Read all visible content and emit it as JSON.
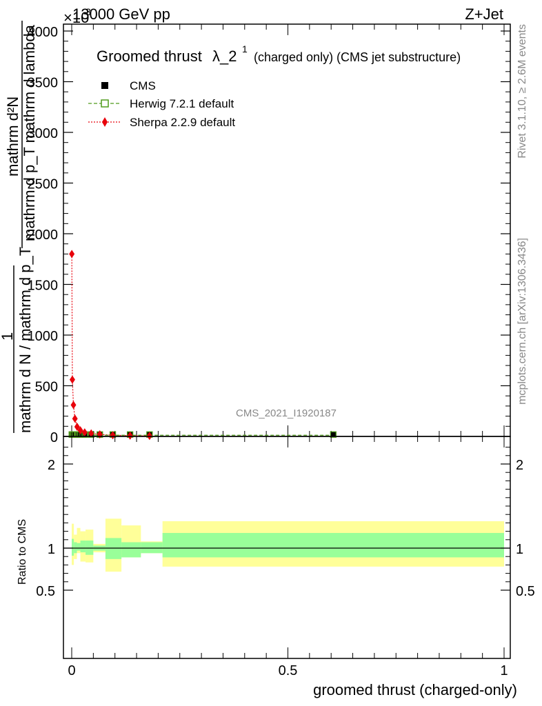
{
  "header": {
    "left": "13000 GeV pp",
    "right": "Z+Jet",
    "exponent": "×10",
    "exponent_power": "3"
  },
  "side": {
    "rivet": "Rivet 3.1.10, ≥ 2.6M events",
    "mcplots": "mcplots.cern.ch [arXiv:1306.3436]"
  },
  "watermark": "CMS_2021_I1920187",
  "chart_data": [
    {
      "type": "scatter",
      "title": "Groomed thrust",
      "title_symbol": "λ_2",
      "title_sup": "1",
      "subtitle": "(charged only) (CMS jet substructure)",
      "ylabel_numerator": "mathrm d²N",
      "ylabel_den": "mathrm d p_T mathrm d lambda",
      "ylabel_one": "1",
      "ylabel_bottom": "mathrm d N / mathrm d p_T",
      "xlim": [
        0,
        1
      ],
      "ylim": [
        0,
        4000
      ],
      "y_ticks": [
        0,
        500,
        1000,
        1500,
        2000,
        2500,
        3000,
        3500,
        4000
      ],
      "y_tick_labels": [
        "0",
        "500",
        "1000",
        "1500",
        "2000",
        "2500",
        "3000",
        "3500",
        "4000"
      ],
      "legend": [
        {
          "name": "CMS",
          "color": "#000000",
          "marker": "square-filled"
        },
        {
          "name": "Herwig 7.2.1 default",
          "color": "#4f9a1a",
          "marker": "square-open",
          "dash": "dashed"
        },
        {
          "name": "Sherpa 2.2.9 default",
          "color": "#e8000b",
          "marker": "diamond",
          "dash": "dotted"
        }
      ],
      "series": [
        {
          "name": "CMS",
          "x": [
            0.00025,
            0.0015,
            0.004,
            0.0075,
            0.0125,
            0.02,
            0.03,
            0.045,
            0.065,
            0.095,
            0.135,
            0.18,
            0.605
          ],
          "y": [
            5,
            5,
            5,
            5,
            5,
            5,
            5,
            5,
            5,
            5,
            5,
            5,
            5
          ]
        },
        {
          "name": "Herwig 7.2.1 default",
          "x": [
            0.00025,
            0.0015,
            0.004,
            0.0075,
            0.0125,
            0.02,
            0.03,
            0.045,
            0.065,
            0.095,
            0.135,
            0.18,
            0.605
          ],
          "y": [
            5,
            5,
            5,
            5,
            5,
            5,
            5,
            5,
            5,
            5,
            5,
            5,
            5
          ]
        },
        {
          "name": "Sherpa 2.2.9 default",
          "x": [
            0.00025,
            0.0015,
            0.004,
            0.0075,
            0.0125,
            0.02,
            0.03,
            0.045,
            0.065,
            0.095,
            0.135,
            0.18
          ],
          "y": [
            1800,
            560,
            310,
            175,
            95,
            60,
            40,
            30,
            20,
            12,
            8,
            5
          ]
        }
      ]
    },
    {
      "type": "area",
      "ylabel": "Ratio to CMS",
      "xlabel": "groomed thrust (charged-only)",
      "xlim": [
        0,
        1
      ],
      "ylim": [
        0.4,
        2.3
      ],
      "x_ticks": [
        0,
        0.5,
        1
      ],
      "x_tick_labels": [
        "0",
        "0.5",
        "1"
      ],
      "y_ticks": [
        0.5,
        1,
        2
      ],
      "y_tick_labels": [
        "0.5",
        "1",
        "2"
      ],
      "band_colors": {
        "stat_syst": "#ffff99",
        "stat": "#99ff99"
      },
      "bins": [
        {
          "x0": 0.0,
          "x1": 0.005,
          "outer": [
            0.8,
            1.29
          ],
          "inner": [
            0.91,
            1.11
          ]
        },
        {
          "x0": 0.005,
          "x1": 0.012,
          "outer": [
            0.87,
            1.16
          ],
          "inner": [
            0.94,
            1.07
          ]
        },
        {
          "x0": 0.012,
          "x1": 0.02,
          "outer": [
            0.94,
            1.24
          ],
          "inner": [
            0.97,
            1.06
          ]
        },
        {
          "x0": 0.02,
          "x1": 0.032,
          "outer": [
            0.84,
            1.2
          ],
          "inner": [
            0.95,
            1.09
          ]
        },
        {
          "x0": 0.032,
          "x1": 0.05,
          "outer": [
            0.83,
            1.22
          ],
          "inner": [
            0.92,
            1.09
          ]
        },
        {
          "x0": 0.05,
          "x1": 0.078,
          "outer": [
            0.95,
            1.05
          ],
          "inner": [
            0.97,
            1.03
          ]
        },
        {
          "x0": 0.078,
          "x1": 0.115,
          "outer": [
            0.72,
            1.35
          ],
          "inner": [
            0.87,
            1.12
          ]
        },
        {
          "x0": 0.115,
          "x1": 0.16,
          "outer": [
            0.89,
            1.27
          ],
          "inner": [
            0.89,
            1.07
          ]
        },
        {
          "x0": 0.16,
          "x1": 0.21,
          "outer": [
            0.94,
            1.08
          ],
          "inner": [
            0.94,
            1.07
          ]
        },
        {
          "x0": 0.21,
          "x1": 1.0,
          "outer": [
            0.78,
            1.32
          ],
          "inner": [
            0.89,
            1.18
          ]
        }
      ]
    }
  ]
}
